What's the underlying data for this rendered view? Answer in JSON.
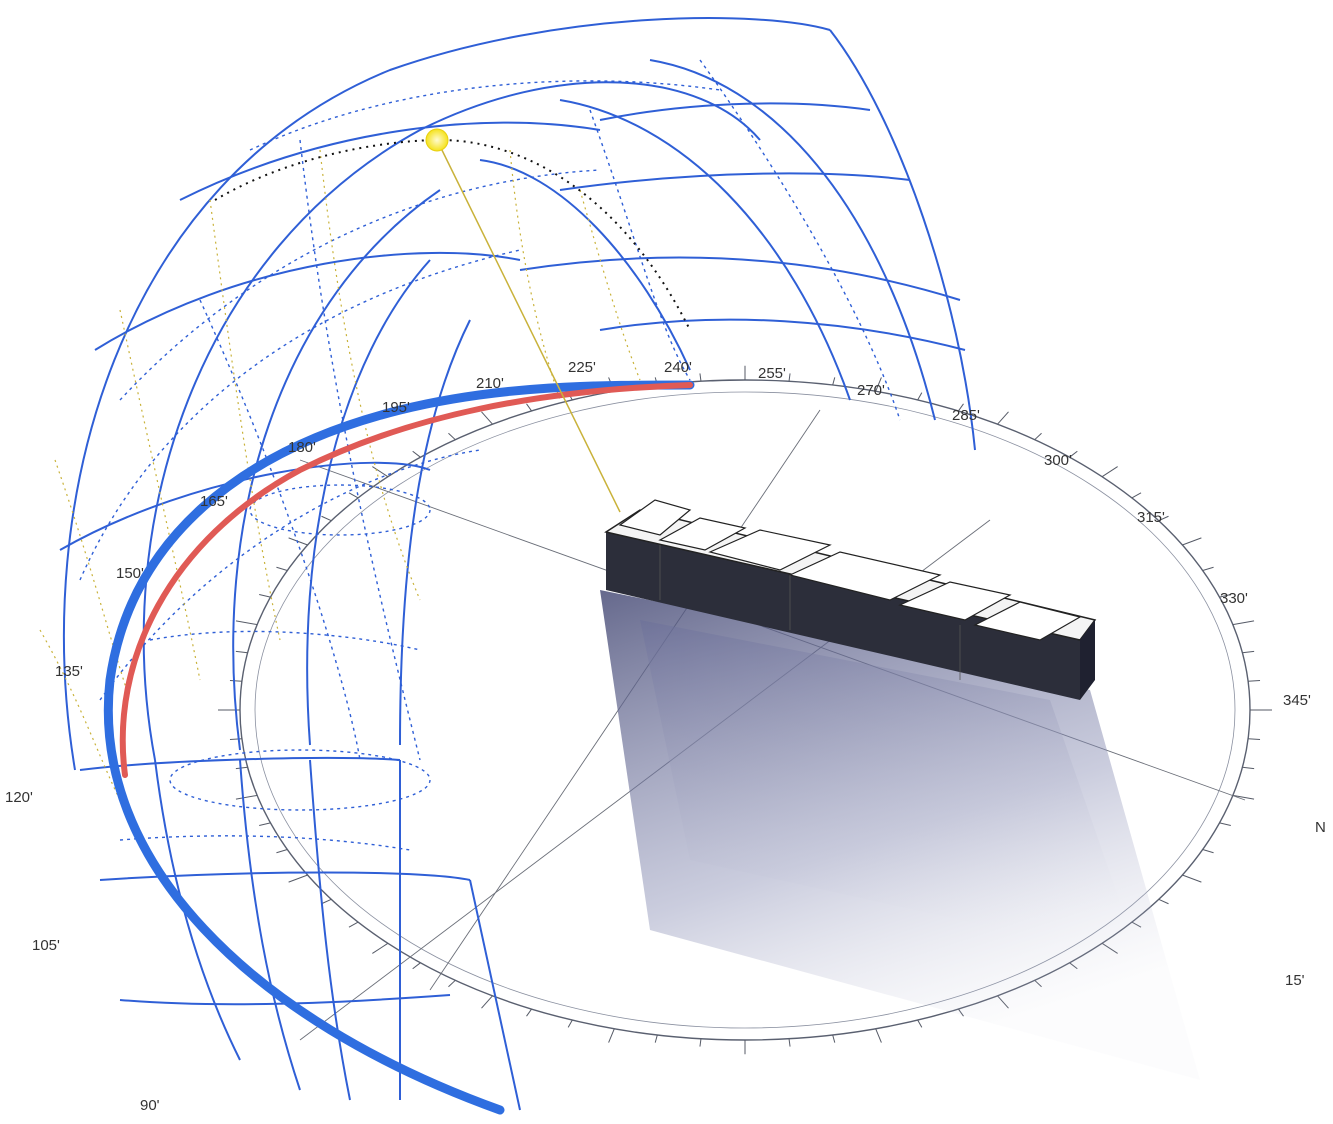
{
  "compass": {
    "labels": [
      {
        "key": "a90",
        "text": "90'"
      },
      {
        "key": "a105",
        "text": "105'"
      },
      {
        "key": "a120",
        "text": "120'"
      },
      {
        "key": "a135",
        "text": "135'"
      },
      {
        "key": "a150",
        "text": "150'"
      },
      {
        "key": "a165",
        "text": "165'"
      },
      {
        "key": "a180",
        "text": "180'"
      },
      {
        "key": "a195",
        "text": "195'"
      },
      {
        "key": "a210",
        "text": "210'"
      },
      {
        "key": "a225",
        "text": "225'"
      },
      {
        "key": "a240",
        "text": "240'"
      },
      {
        "key": "a255",
        "text": "255'"
      },
      {
        "key": "a270",
        "text": "270'"
      },
      {
        "key": "a285",
        "text": "285'"
      },
      {
        "key": "a300",
        "text": "300'"
      },
      {
        "key": "a315",
        "text": "315'"
      },
      {
        "key": "a330",
        "text": "330'"
      },
      {
        "key": "a345",
        "text": "345'"
      },
      {
        "key": "north",
        "text": "N"
      },
      {
        "key": "a15",
        "text": "15'"
      }
    ]
  },
  "colors": {
    "grid": "#2f5fd6",
    "summer_path": "#2f6ee0",
    "winter_path": "#e05a55",
    "sun": "#f5e21b",
    "sun_ray": "#c9b23a",
    "ring": "#5a6070",
    "building": "#2c2e3a",
    "shadow": "#6a6f9a"
  },
  "icons": {
    "sun": "sun-marker-icon"
  }
}
